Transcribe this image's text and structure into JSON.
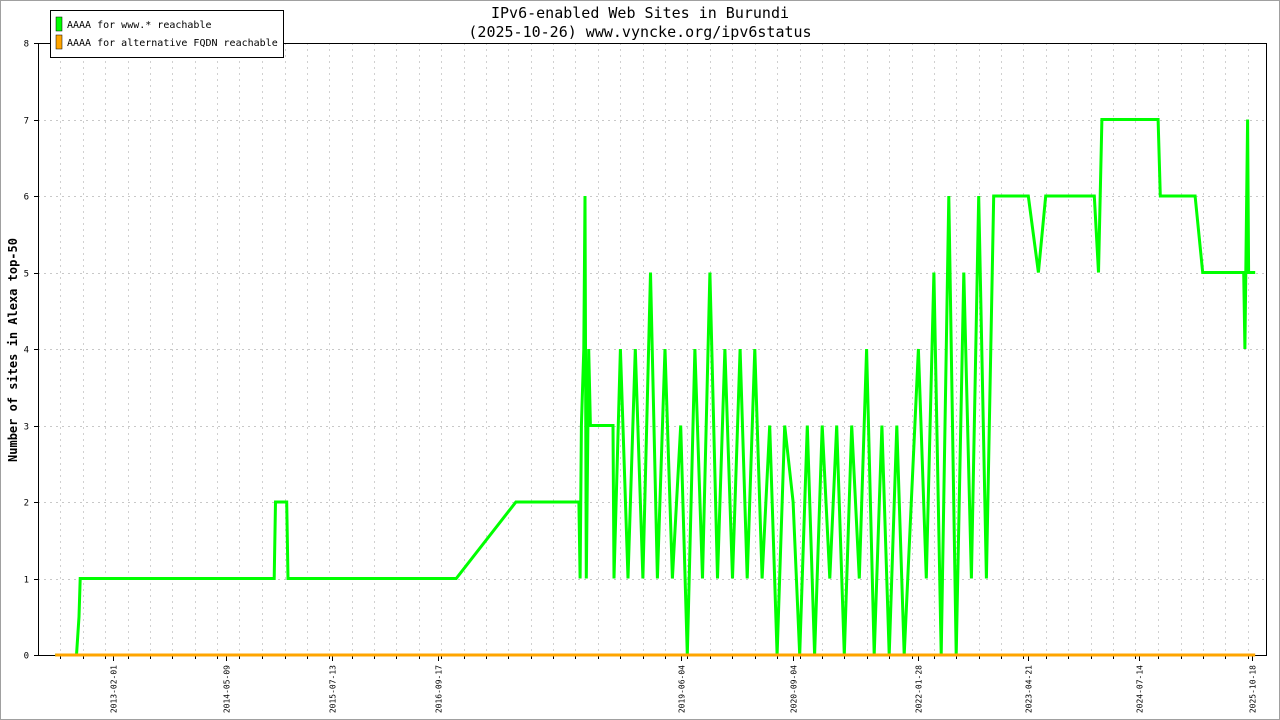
{
  "chart_data": {
    "type": "line",
    "title": "IPv6-enabled Web Sites in Burundi",
    "subtitle": "(2025-10-26) www.vyncke.org/ipv6status",
    "ylabel": "Number of sites in Alexa top-50",
    "xlabel": "",
    "ylim": [
      0,
      8
    ],
    "yticks": [
      0,
      1,
      2,
      3,
      4,
      5,
      6,
      7,
      8
    ],
    "xlim": [
      "2012-04-01",
      "2025-12-15"
    ],
    "xtick_labels": [
      "2013-02-01",
      "2014-05-09",
      "2015-07-13",
      "2016-09-17",
      "2019-06-04",
      "2020-09-04",
      "2022-01-28",
      "2023-04-21",
      "2024-07-14",
      "2025-10-18"
    ],
    "grid": true,
    "legend_position": "top-left",
    "series": [
      {
        "name": "AAAA for www.* reachable",
        "color": "#00ff00",
        "points": [
          [
            "2012-06-10",
            0
          ],
          [
            "2012-09-05",
            0
          ],
          [
            "2012-09-15",
            0.5
          ],
          [
            "2012-09-20",
            1
          ],
          [
            "2014-11-20",
            1
          ],
          [
            "2014-11-25",
            2
          ],
          [
            "2015-01-10",
            2
          ],
          [
            "2015-01-15",
            1
          ],
          [
            "2016-12-01",
            1
          ],
          [
            "2017-08-01",
            2
          ],
          [
            "2018-04-15",
            2
          ],
          [
            "2018-04-20",
            1
          ],
          [
            "2018-04-25",
            3
          ],
          [
            "2018-05-05",
            4
          ],
          [
            "2018-05-10",
            6
          ],
          [
            "2018-05-15",
            1
          ],
          [
            "2018-05-25",
            4
          ],
          [
            "2018-06-01",
            3
          ],
          [
            "2018-09-01",
            3
          ],
          [
            "2018-09-05",
            1
          ],
          [
            "2018-10-01",
            4
          ],
          [
            "2018-11-01",
            1
          ],
          [
            "2018-12-01",
            4
          ],
          [
            "2019-01-01",
            1
          ],
          [
            "2019-02-01",
            5
          ],
          [
            "2019-03-01",
            1
          ],
          [
            "2019-04-01",
            4
          ],
          [
            "2019-05-01",
            1
          ],
          [
            "2019-06-04",
            3
          ],
          [
            "2019-07-01",
            0
          ],
          [
            "2019-08-01",
            4
          ],
          [
            "2019-09-01",
            1
          ],
          [
            "2019-10-01",
            5
          ],
          [
            "2019-11-01",
            1
          ],
          [
            "2019-12-01",
            4
          ],
          [
            "2020-01-01",
            1
          ],
          [
            "2020-02-01",
            4
          ],
          [
            "2020-03-01",
            1
          ],
          [
            "2020-04-01",
            4
          ],
          [
            "2020-05-01",
            1
          ],
          [
            "2020-06-01",
            3
          ],
          [
            "2020-07-01",
            0
          ],
          [
            "2020-08-01",
            3
          ],
          [
            "2020-09-04",
            2
          ],
          [
            "2020-10-01",
            0
          ],
          [
            "2020-11-01",
            3
          ],
          [
            "2020-12-01",
            0
          ],
          [
            "2021-01-01",
            3
          ],
          [
            "2021-02-01",
            1
          ],
          [
            "2021-03-01",
            3
          ],
          [
            "2021-04-01",
            0
          ],
          [
            "2021-05-01",
            3
          ],
          [
            "2021-06-01",
            1
          ],
          [
            "2021-07-01",
            4
          ],
          [
            "2021-08-01",
            0
          ],
          [
            "2021-09-01",
            3
          ],
          [
            "2021-10-01",
            0
          ],
          [
            "2021-11-01",
            3
          ],
          [
            "2021-12-01",
            0
          ],
          [
            "2022-01-28",
            4
          ],
          [
            "2022-03-01",
            1
          ],
          [
            "2022-04-01",
            5
          ],
          [
            "2022-05-01",
            0
          ],
          [
            "2022-06-01",
            6
          ],
          [
            "2022-07-01",
            0
          ],
          [
            "2022-08-01",
            5
          ],
          [
            "2022-09-01",
            1
          ],
          [
            "2022-10-01",
            6
          ],
          [
            "2022-11-01",
            1
          ],
          [
            "2022-12-01",
            6
          ],
          [
            "2023-01-10",
            6
          ],
          [
            "2023-04-21",
            6
          ],
          [
            "2023-06-01",
            5
          ],
          [
            "2023-07-01",
            6
          ],
          [
            "2024-01-15",
            6
          ],
          [
            "2024-02-01",
            5
          ],
          [
            "2024-02-15",
            7
          ],
          [
            "2024-10-01",
            7
          ],
          [
            "2024-10-10",
            6
          ],
          [
            "2025-03-01",
            6
          ],
          [
            "2025-04-01",
            5
          ],
          [
            "2025-09-15",
            5
          ],
          [
            "2025-09-20",
            4
          ],
          [
            "2025-10-01",
            7
          ],
          [
            "2025-10-05",
            5
          ],
          [
            "2025-11-01",
            5
          ]
        ]
      },
      {
        "name": "AAAA for alternative FQDN reachable",
        "color": "#ffa500",
        "points": [
          [
            "2012-06-10",
            0
          ],
          [
            "2025-11-01",
            0
          ]
        ]
      }
    ]
  }
}
